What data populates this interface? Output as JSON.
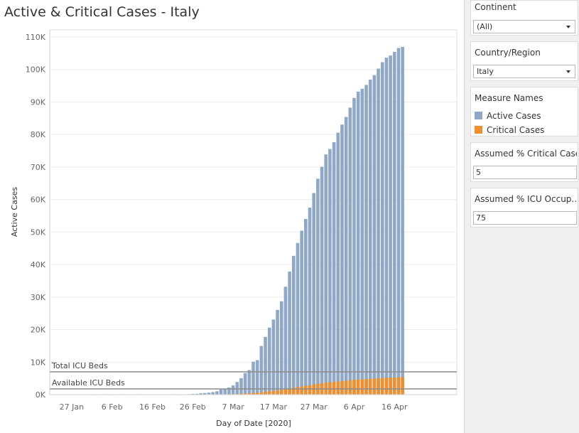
{
  "title": "Active & Critical Cases - Italy",
  "colors": {
    "active": "#8fa8c8",
    "active_edge": "#7d98bb",
    "critical": "#f28e2b",
    "refline": "#8c8c8c",
    "grid": "#ececec"
  },
  "filters": {
    "continent": {
      "title": "Continent",
      "value": "(All)"
    },
    "country": {
      "title": "Country/Region",
      "value": "Italy"
    }
  },
  "legend": {
    "title": "Measure Names",
    "items": [
      {
        "label": "Active Cases",
        "color": "#8fa8c8"
      },
      {
        "label": "Critical Cases",
        "color": "#f28e2b"
      }
    ]
  },
  "params": {
    "critical": {
      "title": "Assumed % Critical Case",
      "value": "5"
    },
    "icu": {
      "title": "Assumed % ICU Occup...",
      "value": "75"
    }
  },
  "chart_data": {
    "type": "bar",
    "stacked": false,
    "xlabel": "Day of Date [2020]",
    "ylabel": "Active Cases",
    "x_start": "2020-01-22",
    "x_end": "2020-04-18",
    "x_ticks": [
      "27 Jan",
      "6 Feb",
      "16 Feb",
      "26 Feb",
      "7 Mar",
      "17 Mar",
      "27 Mar",
      "6 Apr",
      "16 Apr"
    ],
    "ylim": [
      0,
      110000
    ],
    "y_ticks": [
      "0K",
      "10K",
      "20K",
      "30K",
      "40K",
      "50K",
      "60K",
      "70K",
      "80K",
      "90K",
      "100K",
      "110K"
    ],
    "grid": true,
    "series": [
      {
        "name": "Active Cases",
        "values": [
          0,
          0,
          0,
          0,
          0,
          0,
          0,
          0,
          0,
          0,
          2,
          2,
          2,
          2,
          2,
          2,
          2,
          2,
          3,
          3,
          3,
          3,
          3,
          3,
          3,
          3,
          3,
          3,
          3,
          3,
          3,
          3,
          16,
          60,
          140,
          210,
          260,
          400,
          480,
          600,
          760,
          1030,
          1570,
          1840,
          2200,
          2820,
          3870,
          5060,
          6600,
          7550,
          10100,
          10600,
          14950,
          17750,
          20600,
          23100,
          26060,
          28710,
          33190,
          37860,
          42680,
          46640,
          50420,
          54030,
          57520,
          62010,
          66410,
          70070,
          73880,
          75530,
          77640,
          80570,
          83050,
          85390,
          88270,
          91250,
          93190,
          94070,
          95260,
          96880,
          98270,
          100270,
          102250,
          103620,
          104290,
          105420,
          106610,
          106960
        ]
      },
      {
        "name": "Critical Cases",
        "values": [
          0,
          0,
          0,
          0,
          0,
          0,
          0,
          0,
          0,
          0,
          0,
          0,
          0,
          0,
          0,
          0,
          0,
          0,
          0,
          0,
          0,
          0,
          0,
          0,
          0,
          0,
          0,
          0,
          0,
          0,
          0,
          0,
          1,
          3,
          7,
          11,
          13,
          20,
          24,
          30,
          38,
          52,
          79,
          92,
          110,
          141,
          194,
          253,
          330,
          378,
          505,
          530,
          748,
          888,
          1030,
          1155,
          1303,
          1436,
          1660,
          1893,
          2134,
          2332,
          2521,
          2702,
          2876,
          3101,
          3321,
          3504,
          3694,
          3777,
          3882,
          4029,
          4153,
          4270,
          4414,
          4563,
          4660,
          4704,
          4763,
          4844,
          4914,
          5014,
          5113,
          5181,
          5215,
          5271,
          5331,
          5348
        ]
      }
    ],
    "reference_lines": [
      {
        "label": "Total ICU Beds",
        "value": 7000
      },
      {
        "label": "Available ICU Beds",
        "value": 1750
      }
    ]
  }
}
